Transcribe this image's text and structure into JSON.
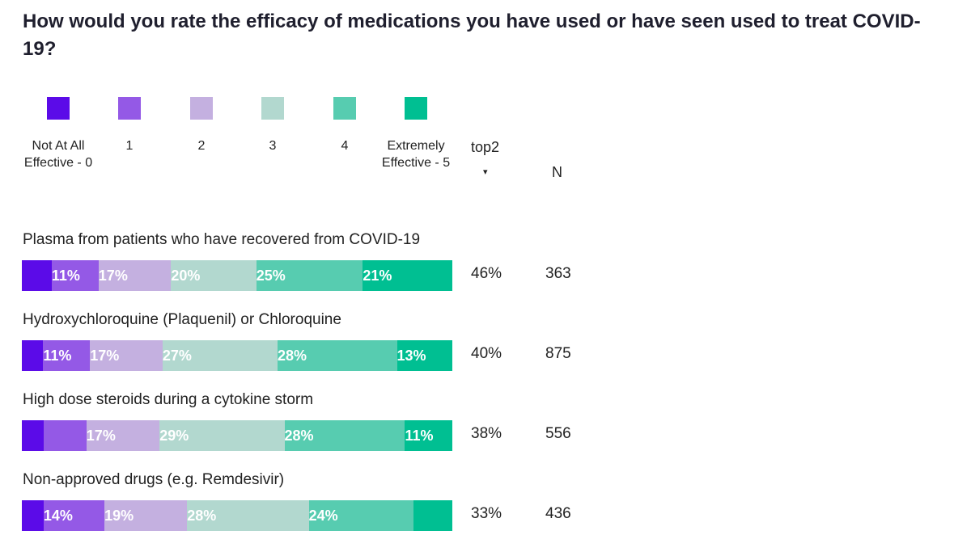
{
  "title": "How would you rate the efficacy of medications you have used or have seen used to treat COVID-19?",
  "colors": [
    "#5b0be8",
    "#9459e6",
    "#c4b0e0",
    "#b2d8cf",
    "#57ccb0",
    "#00bf92"
  ],
  "legend": [
    {
      "label": "Not At All Effective - 0",
      "color": "#5b0be8"
    },
    {
      "label": "1",
      "color": "#9459e6"
    },
    {
      "label": "2",
      "color": "#c4b0e0"
    },
    {
      "label": "3",
      "color": "#b2d8cf"
    },
    {
      "label": "4",
      "color": "#57ccb0"
    },
    {
      "label": "Extremely Effective - 5",
      "color": "#00bf92"
    }
  ],
  "columns": {
    "top2": "top2",
    "sort_icon": "▾",
    "n": "N"
  },
  "chart_data": {
    "type": "bar",
    "orientation": "horizontal",
    "stacked": true,
    "title": "How would you rate the efficacy of medications you have used or have seen used to treat COVID-19?",
    "categories": [
      "Plasma from patients who have recovered from COVID-19",
      "Hydroxychloroquine (Plaquenil) or Chloroquine",
      "High dose steroids during a cytokine storm",
      "Non-approved drugs (e.g. Remdesivir)"
    ],
    "series": [
      {
        "name": "Not At All Effective - 0",
        "values": [
          7,
          5,
          5,
          5
        ]
      },
      {
        "name": "1",
        "values": [
          11,
          11,
          10,
          14
        ]
      },
      {
        "name": "2",
        "values": [
          17,
          17,
          17,
          19
        ]
      },
      {
        "name": "3",
        "values": [
          20,
          27,
          29,
          28
        ]
      },
      {
        "name": "4",
        "values": [
          25,
          28,
          28,
          24
        ]
      },
      {
        "name": "Extremely Effective - 5",
        "values": [
          21,
          13,
          11,
          9
        ]
      }
    ],
    "data_labels": [
      [
        "",
        "11%",
        "17%",
        "20%",
        "25%",
        "21%"
      ],
      [
        "",
        "11%",
        "17%",
        "27%",
        "28%",
        "13%"
      ],
      [
        "",
        "",
        "17%",
        "29%",
        "28%",
        "11%"
      ],
      [
        "",
        "14%",
        "19%",
        "28%",
        "24%",
        ""
      ]
    ],
    "top2": [
      "46%",
      "40%",
      "38%",
      "33%"
    ],
    "n": [
      "363",
      "875",
      "556",
      "436"
    ]
  }
}
